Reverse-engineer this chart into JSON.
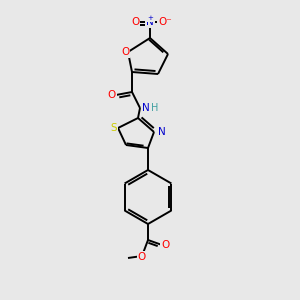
{
  "bg_color": "#e8e8e8",
  "bond_color": "#000000",
  "bond_width": 1.4,
  "atom_colors": {
    "O": "#ff0000",
    "N": "#0000cc",
    "S": "#cccc00",
    "H": "#40a0a0",
    "C": "#000000"
  },
  "figsize": [
    3.0,
    3.0
  ],
  "dpi": 100
}
